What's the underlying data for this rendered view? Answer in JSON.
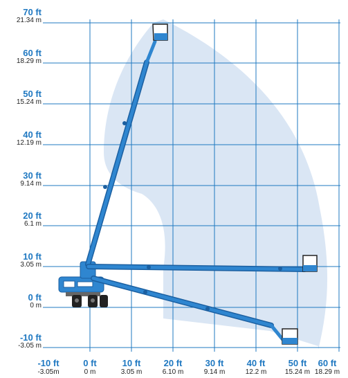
{
  "diagram": {
    "title": "",
    "x_axis": {
      "ticks": [
        {
          "ft": "-10 ft",
          "m": "-3.05m"
        },
        {
          "ft": "0 ft",
          "m": "0 m"
        },
        {
          "ft": "10 ft",
          "m": "3.05 m"
        },
        {
          "ft": "20 ft",
          "m": "6.10 m"
        },
        {
          "ft": "30 ft",
          "m": "9.14 m"
        },
        {
          "ft": "40 ft",
          "m": "12.2 m"
        },
        {
          "ft": "50 ft",
          "m": "15.24 m"
        },
        {
          "ft": "60 ft",
          "m": "18.29 m"
        }
      ]
    },
    "y_axis": {
      "ticks": [
        {
          "ft": "70 ft",
          "m": "21.34 m"
        },
        {
          "ft": "60 ft",
          "m": "18.29 m"
        },
        {
          "ft": "50 ft",
          "m": "15.24 m"
        },
        {
          "ft": "40 ft",
          "m": "12.19 m"
        },
        {
          "ft": "30 ft",
          "m": "9.14 m"
        },
        {
          "ft": "20 ft",
          "m": "6.1 m"
        },
        {
          "ft": "10 ft",
          "m": "3.05 m"
        },
        {
          "ft": "0 ft",
          "m": "0 m"
        },
        {
          "ft": "-10 ft",
          "m": "-3.05 m"
        }
      ]
    },
    "colors": {
      "grid": "#1f78c1",
      "envelope": "#dae6f4",
      "boom": "#2f86d0",
      "boom_dark": "#1b5fa0",
      "label_ft": "#1f78c1",
      "label_m": "#222222"
    },
    "boom_positions": [
      "full-height",
      "horizontal-outreach",
      "below-grade"
    ]
  }
}
